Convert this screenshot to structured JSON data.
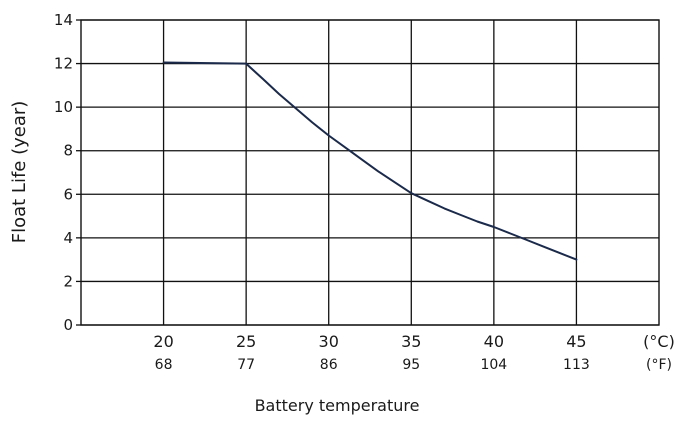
{
  "chart_data": {
    "type": "line",
    "xlabel": "Battery temperature",
    "ylabel": "Float Life (year)",
    "unit_labels": {
      "celsius": "(°C)",
      "fahrenheit": "(°F)"
    },
    "x_ticks": [
      {
        "c": "20",
        "f": "68"
      },
      {
        "c": "25",
        "f": "77"
      },
      {
        "c": "30",
        "f": "86"
      },
      {
        "c": "35",
        "f": "95"
      },
      {
        "c": "40",
        "f": "104"
      },
      {
        "c": "45",
        "f": "113"
      }
    ],
    "y_ticks": [
      "0",
      "2",
      "4",
      "6",
      "8",
      "10",
      "12",
      "14"
    ],
    "xlim": [
      15,
      50
    ],
    "ylim": [
      0,
      14
    ],
    "grid": true,
    "series": [
      {
        "color": "#1b2a4a",
        "x": [
          20,
          25,
          26,
          27,
          28,
          29,
          30,
          31,
          32,
          33,
          34,
          35,
          36,
          37,
          38,
          39,
          40,
          41,
          42,
          43,
          44,
          45
        ],
        "y": [
          12.05,
          12.0,
          11.3,
          10.6,
          9.95,
          9.3,
          8.7,
          8.15,
          7.6,
          7.05,
          6.55,
          6.05,
          5.7,
          5.35,
          5.05,
          4.75,
          4.5,
          4.2,
          3.9,
          3.6,
          3.3,
          3.0
        ]
      }
    ]
  }
}
